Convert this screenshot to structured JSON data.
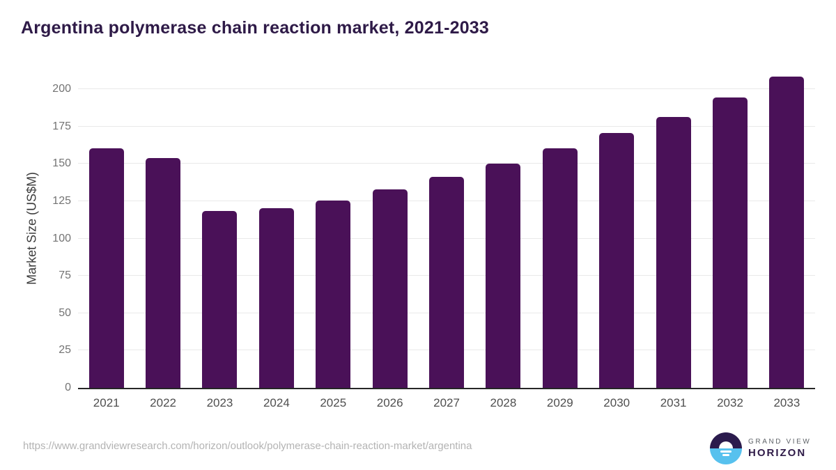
{
  "header": {
    "title": "Argentina polymerase chain reaction market, 2021-2033"
  },
  "chart_data": {
    "type": "bar",
    "title": "Argentina polymerase chain reaction market, 2021-2033",
    "categories": [
      "2021",
      "2022",
      "2023",
      "2024",
      "2025",
      "2026",
      "2027",
      "2028",
      "2029",
      "2030",
      "2031",
      "2032",
      "2033"
    ],
    "values": [
      160.2,
      154.0,
      118.5,
      120.4,
      125.4,
      132.9,
      141.4,
      150.3,
      160.2,
      170.8,
      181.5,
      194.5,
      208.5
    ],
    "xlabel": "",
    "ylabel": "Market Size (US$M)",
    "yticks": [
      0,
      25,
      50,
      75,
      100,
      125,
      150,
      175,
      200
    ],
    "ylim": [
      0,
      214.5
    ],
    "grid": true,
    "legend_position": "none",
    "bar_color": "#4a1158"
  },
  "footer": {
    "source_url": "https://www.grandviewresearch.com/horizon/outlook/polymerase-chain-reaction-market/argentina",
    "logo": {
      "line1": "GRAND VIEW",
      "line2": "HORIZON"
    }
  },
  "colors": {
    "title_text": "#2e1a47",
    "bar": "#4a1158",
    "gridline": "#e9e9e9",
    "axis_line": "#262626",
    "y_tick_text": "#737373",
    "x_tick_text": "#4f4f4f",
    "y_axis_title_text": "#3c3c3c",
    "source_url_text": "#b3b3b3",
    "logo_dark": "#2b1b4d",
    "logo_blue": "#57c1ee"
  }
}
